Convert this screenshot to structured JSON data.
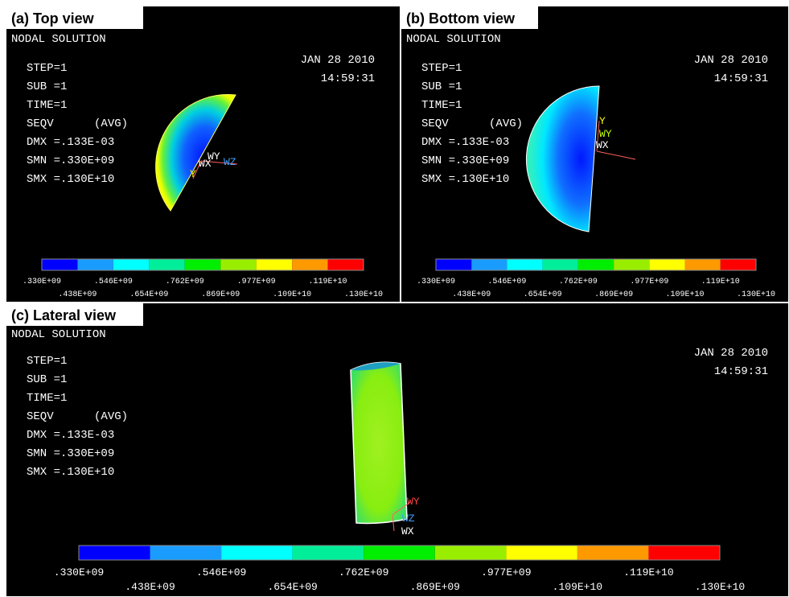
{
  "panels": [
    {
      "label": "(a) Top view",
      "title": "NODAL SOLUTION",
      "info": [
        "STEP=1",
        "SUB =1",
        "TIME=1",
        "SEQV      (AVG)",
        "DMX =.133E-03",
        "SMN =.330E+09",
        "SMX =.130E+10"
      ],
      "date": "JAN 28 2010",
      "time": "14:59:31",
      "legend_upper": [
        ".330E+09",
        ".546E+09",
        ".762E+09",
        ".977E+09",
        ".119E+10"
      ],
      "legend_lower": [
        ".438E+09",
        ".654E+09",
        ".869E+09",
        ".109E+10",
        ".130E+10"
      ],
      "triad": [
        "WY",
        "WX",
        "WZ",
        "Y"
      ]
    },
    {
      "label": "(b) Bottom view",
      "title": "NODAL SOLUTION",
      "info": [
        "STEP=1",
        "SUB =1",
        "TIME=1",
        "SEQV      (AVG)",
        "DMX =.133E-03",
        "SMN =.330E+09",
        "SMX =.130E+10"
      ],
      "date": "JAN 28 2010",
      "time": "14:59:31",
      "legend_upper": [
        ".330E+09",
        ".546E+09",
        ".762E+09",
        ".977E+09",
        ".119E+10"
      ],
      "legend_lower": [
        ".438E+09",
        ".654E+09",
        ".869E+09",
        ".109E+10",
        ".130E+10"
      ],
      "triad": [
        "Y",
        "WY",
        "WX"
      ]
    },
    {
      "label": "(c) Lateral view",
      "title": "NODAL SOLUTION",
      "info": [
        "STEP=1",
        "SUB =1",
        "TIME=1",
        "SEQV      (AVG)",
        "DMX =.133E-03",
        "SMN =.330E+09",
        "SMX =.130E+10"
      ],
      "date": "JAN 28 2010",
      "time": "14:59:31",
      "legend_upper": [
        ".330E+09",
        ".546E+09",
        ".762E+09",
        ".977E+09",
        ".119E+10"
      ],
      "legend_lower": [
        ".438E+09",
        ".654E+09",
        ".869E+09",
        ".109E+10",
        ".130E+10"
      ],
      "triad": [
        "WY",
        "WZ",
        "WX"
      ]
    }
  ]
}
